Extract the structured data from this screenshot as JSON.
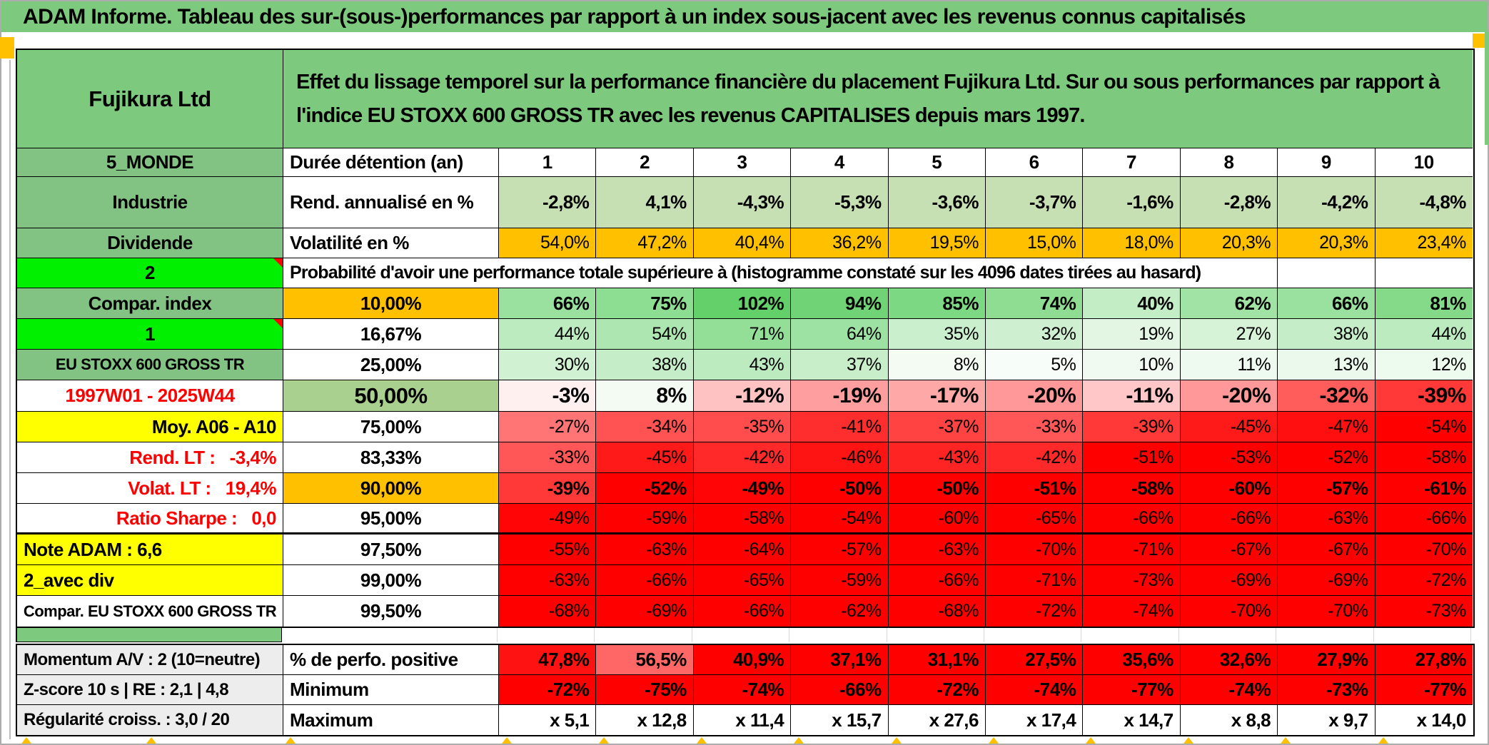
{
  "title": "ADAM Informe. Tableau des sur-(sous-)performances par rapport à un index sous-jacent avec les revenus connus capitalisés",
  "palette": {
    "title_green": "#7DC97E",
    "label_green": "#82C283",
    "bright_green": "#00F000",
    "sage_green": "#A9D08E",
    "flat_light_green": "#C6E0B4",
    "orange": "#FFC000",
    "yellow": "#FFFF00",
    "gray_label": "#EDEDED",
    "red_full": "#FF0000",
    "green_anchor": "#5FCF66",
    "red_text": "#FF0000",
    "black": "#000000",
    "white": "#FFFFFF"
  },
  "table": {
    "instrument_name": "Fujikura Ltd",
    "description": "Effet du lissage temporel sur la performance financière du placement Fujikura Ltd. Sur ou sous performances par rapport à l'indice EU STOXX 600 GROSS TR avec les revenus CAPITALISES depuis mars 1997.",
    "columns": [
      "1",
      "2",
      "3",
      "4",
      "5",
      "6",
      "7",
      "8",
      "9",
      "10"
    ],
    "probability_note": "Probabilité d'avoir une performance totale supérieure à (histogramme constaté sur les 4096 dates tirées au hasard)",
    "rows": [
      {
        "key": "duration",
        "left": "5_MONDE",
        "leftBg": "green",
        "mid": "Durée détention (an)",
        "midAlign": "left",
        "values": [
          "1",
          "2",
          "3",
          "4",
          "5",
          "6",
          "7",
          "8",
          "9",
          "10"
        ],
        "mode": "white",
        "bold": true,
        "valAlign": "ctr"
      },
      {
        "key": "annualized-return",
        "left": "Industrie",
        "leftBg": "green",
        "mid": "Rend. annualisé en %",
        "midAlign": "left",
        "values": [
          "-2,8%",
          "4,1%",
          "-4,3%",
          "-5,3%",
          "-3,6%",
          "-3,7%",
          "-1,6%",
          "-2,8%",
          "-4,2%",
          "-4,8%"
        ],
        "mode": "flat",
        "flat": "flat_light_green",
        "bold": true
      },
      {
        "key": "volatility",
        "left": "Dividende",
        "leftBg": "green",
        "mid": "Volatilité en %",
        "midAlign": "left",
        "values": [
          "54,0%",
          "47,2%",
          "40,4%",
          "36,2%",
          "19,5%",
          "15,0%",
          "18,0%",
          "20,3%",
          "20,3%",
          "23,4%"
        ],
        "mode": "flat",
        "flat": "orange",
        "bold": false
      },
      {
        "key": "probability-note",
        "type": "merged",
        "left": "2",
        "leftBg": "bright",
        "marker": true
      },
      {
        "key": "p10",
        "left": "Compar. index",
        "leftBg": "green",
        "mid": "10,00%",
        "midBg": "orange",
        "values": [
          "66%",
          "75%",
          "102%",
          "94%",
          "85%",
          "74%",
          "40%",
          "62%",
          "66%",
          "81%"
        ],
        "mode": "scale",
        "bold": true
      },
      {
        "key": "p16-67",
        "left": "1",
        "leftBg": "bright",
        "marker": true,
        "mid": "16,67%",
        "values": [
          "44%",
          "54%",
          "71%",
          "64%",
          "35%",
          "32%",
          "19%",
          "27%",
          "38%",
          "44%"
        ],
        "mode": "scale",
        "bold": false
      },
      {
        "key": "p25",
        "left": "EU STOXX 600 GROSS TR",
        "leftBg": "green",
        "leftSize": 22,
        "mid": "25,00%",
        "values": [
          "30%",
          "38%",
          "43%",
          "37%",
          "8%",
          "5%",
          "10%",
          "11%",
          "13%",
          "12%"
        ],
        "mode": "scale",
        "bold": false
      },
      {
        "key": "p50",
        "left": "1997W01 - 2025W44",
        "leftBg": "white",
        "leftColor": "red",
        "mid": "50,00%",
        "midBg": "sage",
        "emph": true,
        "values": [
          "-3%",
          "8%",
          "-12%",
          "-19%",
          "-17%",
          "-20%",
          "-11%",
          "-20%",
          "-32%",
          "-39%"
        ],
        "mode": "scale",
        "bold": true
      },
      {
        "key": "p75",
        "left": "Moy. A06 - A10",
        "leftBg": "yellow",
        "leftAlign": "rgt",
        "mid": "75,00%",
        "values": [
          "-27%",
          "-34%",
          "-35%",
          "-41%",
          "-37%",
          "-33%",
          "-39%",
          "-45%",
          "-47%",
          "-54%"
        ],
        "mode": "scale",
        "bold": false
      },
      {
        "key": "p83-33",
        "left": "Rend. LT :   -3,4%",
        "leftBg": "white",
        "leftColor": "red",
        "leftAlign": "rgt",
        "mid": "83,33%",
        "values": [
          "-33%",
          "-45%",
          "-42%",
          "-46%",
          "-43%",
          "-42%",
          "-51%",
          "-53%",
          "-52%",
          "-58%"
        ],
        "mode": "scale",
        "bold": false
      },
      {
        "key": "p90",
        "left": "Volat. LT :   19,4%",
        "leftBg": "white",
        "leftColor": "red",
        "leftAlign": "rgt",
        "mid": "90,00%",
        "midBg": "orange",
        "values": [
          "-39%",
          "-52%",
          "-49%",
          "-50%",
          "-50%",
          "-51%",
          "-58%",
          "-60%",
          "-57%",
          "-61%"
        ],
        "mode": "scale",
        "bold": true
      },
      {
        "key": "p95",
        "left": "Ratio Sharpe :   0,0",
        "leftBg": "white",
        "leftColor": "red",
        "leftAlign": "rgt",
        "mid": "95,00%",
        "thick": true,
        "values": [
          "-49%",
          "-59%",
          "-58%",
          "-54%",
          "-60%",
          "-65%",
          "-66%",
          "-66%",
          "-63%",
          "-66%"
        ],
        "mode": "scale",
        "bold": false
      },
      {
        "key": "p97-5",
        "left": "Note ADAM : 6,6",
        "leftBg": "yellow",
        "leftAlign": "lft",
        "mid": "97,50%",
        "values": [
          "-55%",
          "-63%",
          "-64%",
          "-57%",
          "-63%",
          "-70%",
          "-71%",
          "-67%",
          "-67%",
          "-70%"
        ],
        "mode": "scale",
        "bold": false
      },
      {
        "key": "p99",
        "left": "2_avec div",
        "leftBg": "yellow",
        "leftAlign": "lft",
        "mid": "99,00%",
        "values": [
          "-63%",
          "-66%",
          "-65%",
          "-59%",
          "-66%",
          "-71%",
          "-73%",
          "-69%",
          "-69%",
          "-72%"
        ],
        "mode": "scale",
        "bold": false
      },
      {
        "key": "p99-5",
        "left": "Compar. EU STOXX 600 GROSS TR",
        "leftBg": "white",
        "leftSize": 22,
        "mid": "99,50%",
        "values": [
          "-68%",
          "-69%",
          "-66%",
          "-62%",
          "-68%",
          "-72%",
          "-74%",
          "-70%",
          "-70%",
          "-73%"
        ],
        "mode": "scale",
        "bold": false
      }
    ],
    "bottom_rows": [
      {
        "key": "positive-perf",
        "left": "Momentum A/V : 2 (10=neutre)",
        "leftBg": "gray",
        "leftAlign": "lft",
        "leftSize": 24,
        "mid": "% de perfo. positive",
        "midAlign": "left",
        "values": [
          "47,8%",
          "56,5%",
          "40,9%",
          "37,1%",
          "31,1%",
          "27,5%",
          "35,6%",
          "32,6%",
          "27,9%",
          "27,8%"
        ],
        "mode": "perf",
        "bold": true
      },
      {
        "key": "minimum",
        "left": "Z-score 10 s | RE : 2,1 | 4,8",
        "leftBg": "gray",
        "leftAlign": "lft",
        "leftSize": 24,
        "mid": "Minimum",
        "midAlign": "left",
        "values": [
          "-72%",
          "-75%",
          "-74%",
          "-66%",
          "-72%",
          "-74%",
          "-77%",
          "-74%",
          "-73%",
          "-77%"
        ],
        "mode": "scale",
        "bold": true
      },
      {
        "key": "maximum",
        "left": "Régularité croiss. : 3,0 / 20",
        "leftBg": "gray",
        "leftAlign": "lft",
        "leftSize": 24,
        "mid": "Maximum",
        "midAlign": "left",
        "values": [
          "x 5,1",
          "x 12,8",
          "x 11,4",
          "x 15,7",
          "x 27,6",
          "x 17,4",
          "x 14,7",
          "x 8,8",
          "x 9,7",
          "x 14,0"
        ],
        "mode": "white",
        "bold": true
      }
    ]
  }
}
